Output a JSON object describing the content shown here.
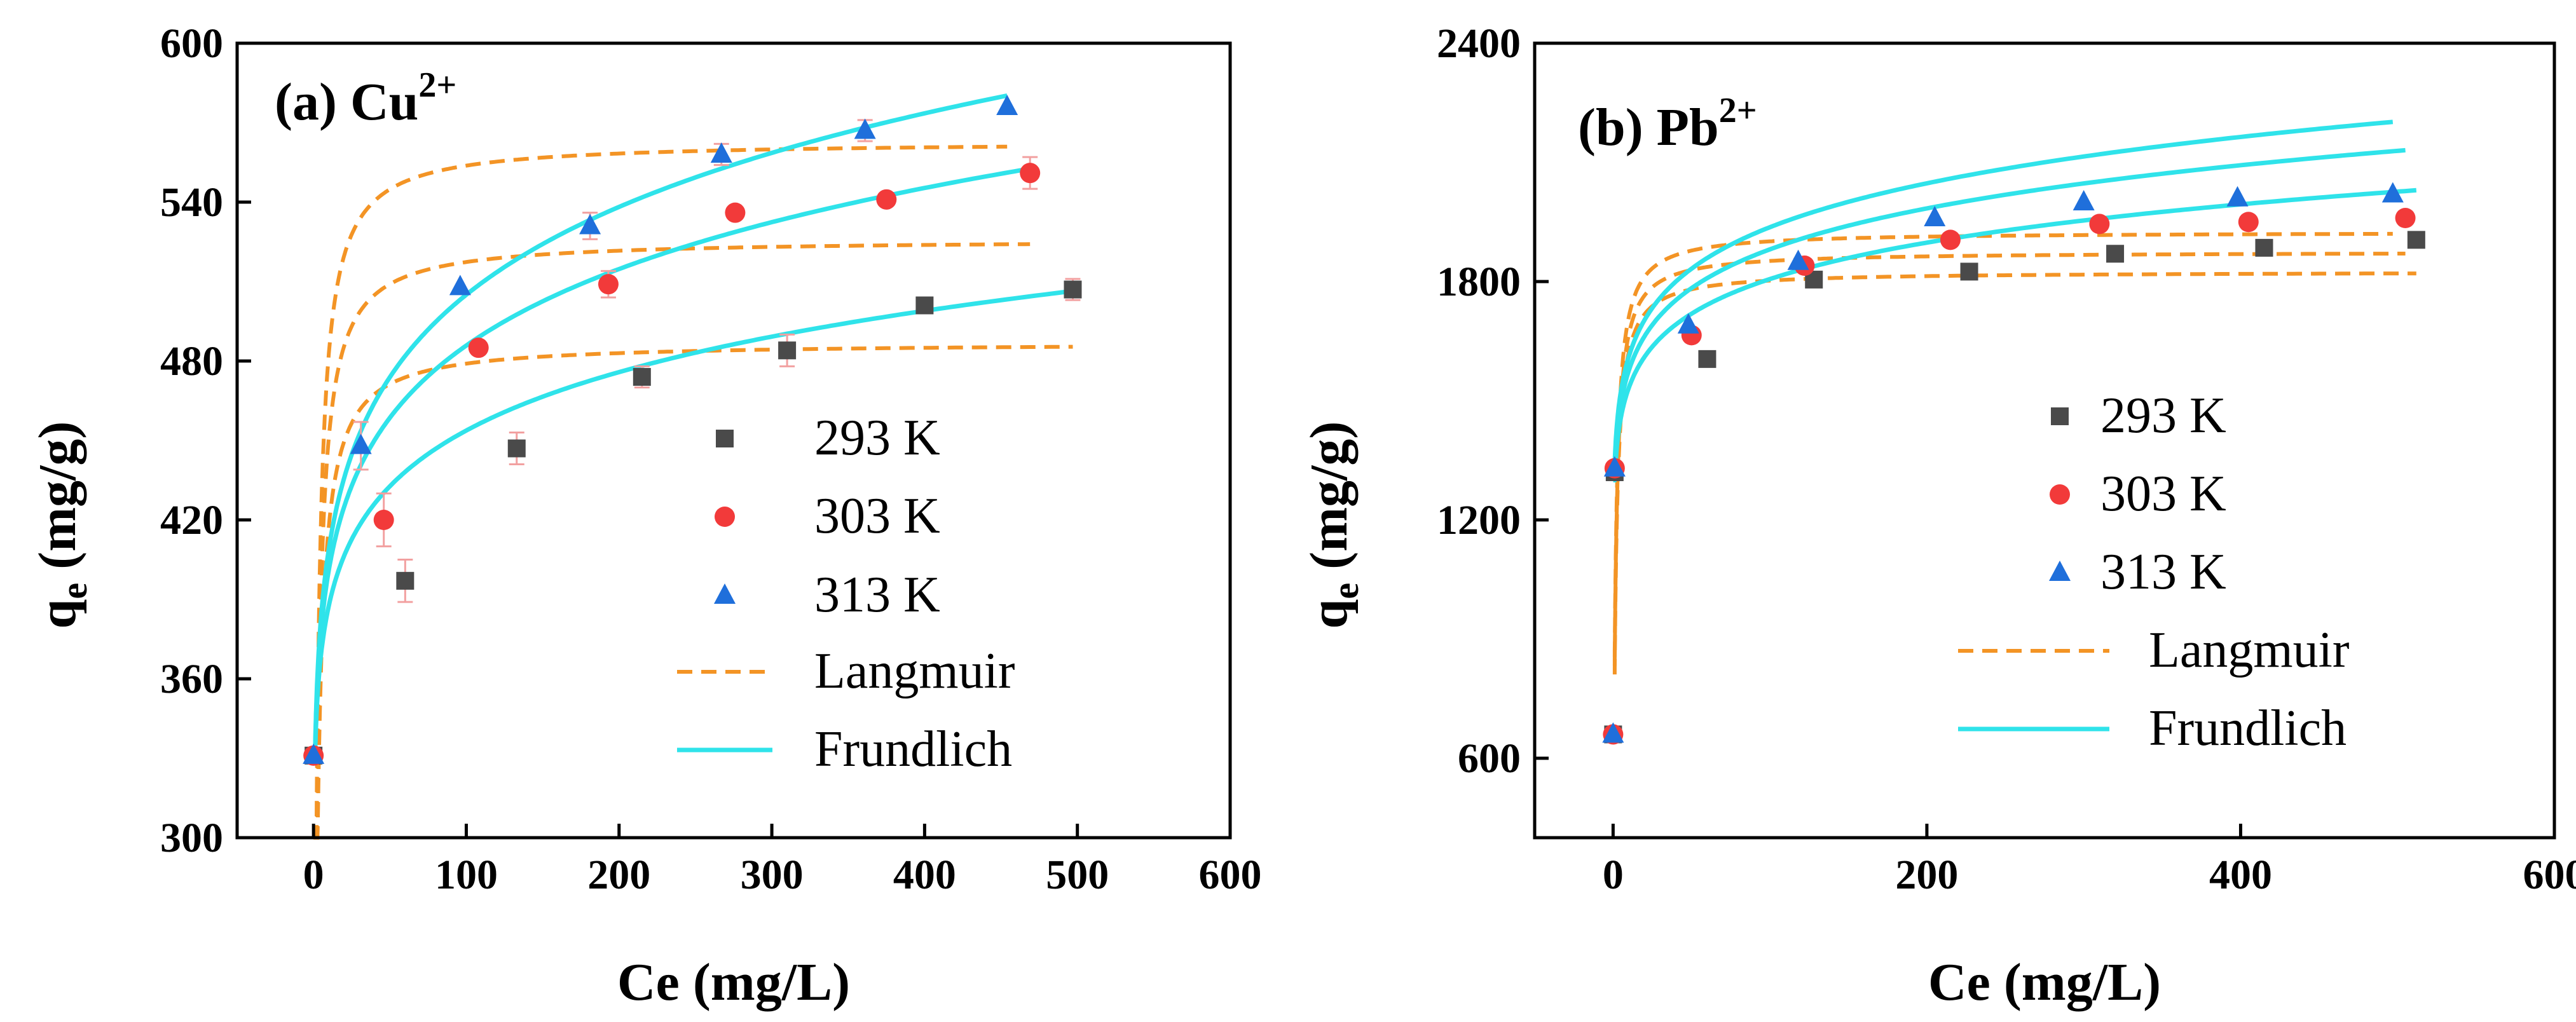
{
  "colors": {
    "t293": "#4a4a4a",
    "t303": "#f23a3a",
    "t313": "#1f6fdb",
    "langmuir": "#f39425",
    "freundlich": "#2fe3ea",
    "errorbar": "#f2a0a0"
  },
  "chart_data": [
    {
      "type": "scatter",
      "panel": "a",
      "title_prefix": "(a) Cu",
      "title_sup": "2+",
      "xlabel": "Ce (mg/L)",
      "ylabel_main": "q",
      "ylabel_sub": "e",
      "ylabel_unit": " (mg/g)",
      "xlim": [
        -50,
        600
      ],
      "ylim": [
        300,
        600
      ],
      "xticks": [
        0,
        100,
        200,
        300,
        400,
        500,
        600
      ],
      "xtick_labels": [
        "0",
        "100",
        "200",
        "300",
        "400",
        "500",
        "600"
      ],
      "yticks": [
        300,
        360,
        420,
        480,
        540,
        600
      ],
      "ytick_labels": [
        "300",
        "360",
        "420",
        "480",
        "540",
        "600"
      ],
      "legend_position": "center-right",
      "series": [
        {
          "name": "293 K",
          "key": "t293",
          "marker": "square",
          "x": [
            0,
            60,
            133,
            215,
            310,
            400,
            497
          ],
          "y": [
            331,
            397,
            447,
            474,
            484,
            501,
            507
          ],
          "err": [
            0,
            8,
            6,
            4,
            6,
            0,
            4
          ]
        },
        {
          "name": "303 K",
          "key": "t303",
          "marker": "circle",
          "x": [
            0,
            46,
            108,
            193,
            276,
            375,
            469
          ],
          "y": [
            331,
            420,
            485,
            509,
            536,
            541,
            551
          ],
          "err": [
            0,
            10,
            0,
            5,
            0,
            0,
            6
          ]
        },
        {
          "name": "313  K",
          "key": "t313",
          "marker": "triangle",
          "x": [
            0,
            31,
            96,
            181,
            267,
            361,
            454
          ],
          "y": [
            331,
            448,
            508,
            531,
            558,
            567,
            576
          ],
          "err": [
            0,
            9,
            0,
            5,
            4,
            4,
            0
          ]
        }
      ],
      "fits": [
        {
          "model": "Langmuir",
          "key": "t293",
          "qm": 487,
          "KL": 0.6,
          "xmax": 497
        },
        {
          "model": "Langmuir",
          "key": "t303",
          "qm": 526,
          "KL": 0.6,
          "xmax": 469
        },
        {
          "model": "Langmuir",
          "key": "t313",
          "qm": 563,
          "KL": 0.6,
          "xmax": 454
        },
        {
          "model": "Freundlich",
          "key": "t293",
          "KF": 331,
          "n": 14.6,
          "xmax": 497
        },
        {
          "model": "Freundlich",
          "key": "t303",
          "KF": 331,
          "n": 12.0,
          "xmax": 469
        },
        {
          "model": "Freundlich",
          "key": "t313",
          "KF": 331,
          "n": 10.9,
          "xmax": 454
        }
      ],
      "legend": [
        "293 K",
        "303 K",
        "313  K",
        "Langmuir",
        "Frundlich"
      ]
    },
    {
      "type": "scatter",
      "panel": "b",
      "title_prefix": "(b) Pb",
      "title_sup": "2+",
      "xlabel": "Ce (mg/L)",
      "ylabel_main": "q",
      "ylabel_sub": "e",
      "ylabel_unit": " (mg/g)",
      "xlim": [
        -50,
        600
      ],
      "ylim": [
        400,
        2400
      ],
      "xticks": [
        0,
        200,
        400,
        600
      ],
      "xtick_labels": [
        "0",
        "200",
        "400",
        "600"
      ],
      "yticks": [
        600,
        1200,
        1800,
        2400
      ],
      "ytick_labels": [
        "600",
        "1200",
        "1800",
        "2400"
      ],
      "legend_position": "center-right",
      "series": [
        {
          "name": "293 K",
          "key": "t293",
          "marker": "square",
          "x": [
            0,
            1,
            60,
            128,
            227,
            320,
            415,
            512
          ],
          "y": [
            660,
            1320,
            1605,
            1805,
            1825,
            1870,
            1885,
            1905
          ],
          "err": [
            0,
            0,
            0,
            0,
            0,
            0,
            0,
            0
          ]
        },
        {
          "name": "303 K",
          "key": "t303",
          "marker": "circle",
          "x": [
            0,
            1,
            50,
            122,
            215,
            310,
            405,
            505
          ],
          "y": [
            660,
            1330,
            1665,
            1840,
            1905,
            1945,
            1950,
            1960
          ],
          "err": [
            0,
            0,
            0,
            0,
            0,
            0,
            0,
            0
          ]
        },
        {
          "name": "313 K",
          "key": "t313",
          "marker": "triangle",
          "x": [
            0,
            1,
            48,
            118,
            205,
            300,
            398,
            497
          ],
          "y": [
            660,
            1330,
            1690,
            1850,
            1960,
            2000,
            2010,
            2020
          ],
          "err": [
            0,
            0,
            0,
            0,
            0,
            0,
            0,
            0
          ]
        }
      ],
      "fits": [
        {
          "model": "Langmuir",
          "key": "t293",
          "qm": 1825,
          "KL": 0.8,
          "xmax": 512,
          "x0": 1
        },
        {
          "model": "Langmuir",
          "key": "t303",
          "qm": 1875,
          "KL": 0.8,
          "xmax": 505,
          "x0": 1
        },
        {
          "model": "Langmuir",
          "key": "t313",
          "qm": 1925,
          "KL": 0.8,
          "xmax": 497,
          "x0": 1
        },
        {
          "model": "Freundlich",
          "key": "t293",
          "KF": 1300,
          "n": 14.0,
          "xmax": 512,
          "x0": 0.1
        },
        {
          "model": "Freundlich",
          "key": "t303",
          "KF": 1320,
          "n": 13.0,
          "xmax": 505,
          "x0": 0.1
        },
        {
          "model": "Freundlich",
          "key": "t313",
          "KF": 1340,
          "n": 12.5,
          "xmax": 497,
          "x0": 0.1
        }
      ],
      "legend": [
        "293 K",
        "303 K",
        "313 K",
        "Langmuir",
        "Frundlich"
      ]
    }
  ]
}
